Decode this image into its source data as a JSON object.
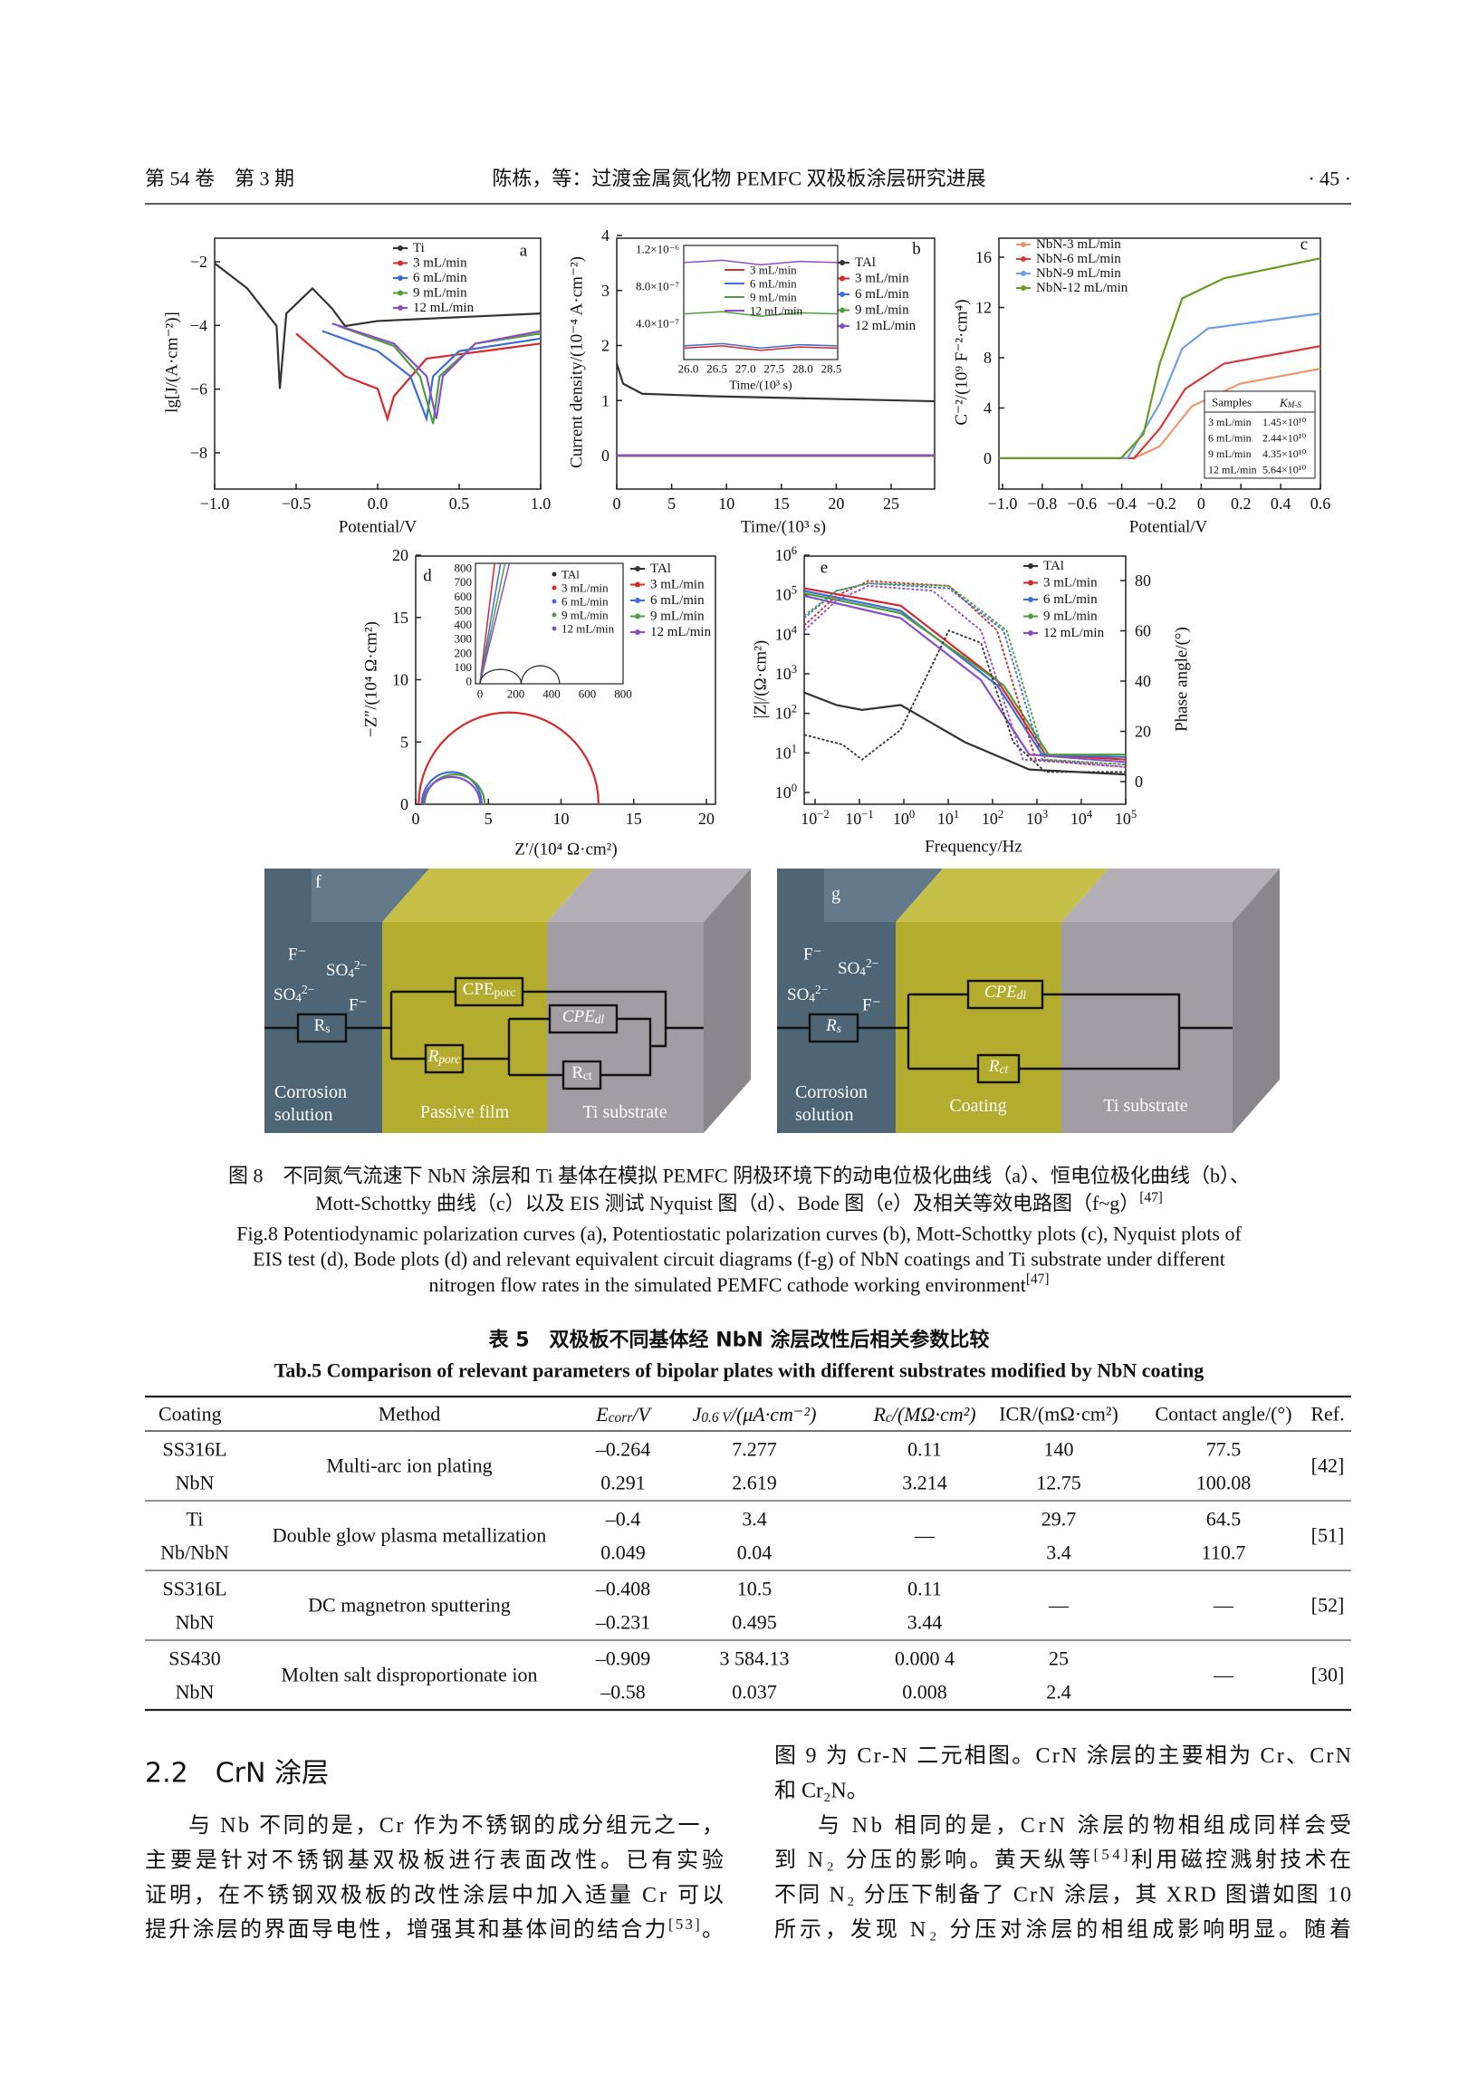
{
  "header": {
    "issue": "第 54 卷　第 3 期",
    "title": "陈栋，等：过渡金属氮化物 PEMFC 双极板涂层研究进展",
    "page": "· 45 ·"
  },
  "figure": {
    "a": {
      "letter": "a",
      "ylabel": "lg[J/(A·cm⁻²)]",
      "xlabel": "Potential/V",
      "yticks": [
        "−8",
        "−6",
        "−4",
        "−2"
      ],
      "xticks": [
        "−1.0",
        "−0.5",
        "0.0",
        "0.5",
        "1.0"
      ],
      "legend": [
        "Ti",
        "3 mL/min",
        "6 mL/min",
        "9 mL/min",
        "12 mL/min"
      ],
      "colors": [
        "#333333",
        "#d42a2a",
        "#3c6fd6",
        "#4e9e3e",
        "#8a4fc4"
      ]
    },
    "b": {
      "letter": "b",
      "ylabel": "Current density/(10⁻⁴ A·cm⁻²)",
      "xlabel": "Time/(10³ s)",
      "yticks": [
        "0",
        "1",
        "2",
        "3",
        "4"
      ],
      "xticks": [
        "0",
        "5",
        "10",
        "15",
        "20",
        "25"
      ],
      "legend": [
        "TAl",
        "3 mL/min",
        "6 mL/min",
        "9 mL/min",
        "12 mL/min"
      ],
      "colors": [
        "#333333",
        "#d42a2a",
        "#3c6fd6",
        "#4e9e3e",
        "#8a4fc4"
      ],
      "inset": {
        "yticks": [
          "4.0×10⁻⁷",
          "8.0×10⁻⁷",
          "1.2×10⁻⁶"
        ],
        "xticks": [
          "26.0",
          "26.5",
          "27.0",
          "27.5",
          "28.0",
          "28.5"
        ],
        "xlabel": "Time/(10³ s)",
        "legend": [
          "3 mL/min",
          "6 mL/min",
          "9 mL/min",
          "12 mL/min"
        ]
      }
    },
    "c": {
      "letter": "c",
      "ylabel": "C⁻²/(10⁹ F⁻²·cm⁴)",
      "xlabel": "Potential/V",
      "yticks": [
        "0",
        "4",
        "8",
        "12",
        "16"
      ],
      "xticks": [
        "−1.0",
        "−0.8",
        "−0.6",
        "−0.4",
        "−0.2",
        "0",
        "0.2",
        "0.4",
        "0.6"
      ],
      "legend": [
        "NbN-3 mL/min",
        "NbN-6 mL/min",
        "NbN-9 mL/min",
        "NbN-12 mL/min"
      ],
      "colors": [
        "#f0956a",
        "#d43a3a",
        "#6fa0e8",
        "#6b9a22"
      ],
      "table": {
        "header": [
          "Samples",
          [
            "K",
            {
              "sub": "M-S"
            }
          ]
        ],
        "rows": [
          [
            "3 mL/min",
            "1.45×10¹⁰"
          ],
          [
            "6 mL/min",
            "2.44×10¹⁰"
          ],
          [
            "9 mL/min",
            "4.35×10¹⁰"
          ],
          [
            "12 mL/min",
            "5.64×10¹⁰"
          ]
        ]
      }
    },
    "d": {
      "letter": "d",
      "ylabel": "−Z″/(10⁴ Ω·cm²)",
      "xlabel": "Z′/(10⁴ Ω·cm²)",
      "yticks": [
        "0",
        "5",
        "10",
        "15",
        "20"
      ],
      "xticks": [
        "0",
        "5",
        "10",
        "15",
        "20"
      ],
      "legend": [
        "TAl",
        "3 mL/min",
        "6 mL/min",
        "9 mL/min",
        "12 mL/min"
      ],
      "colors": [
        "#333333",
        "#d42a2a",
        "#3c6fd6",
        "#4e9e3e",
        "#8a4fc4"
      ],
      "inset": {
        "yticks": [
          "0",
          "100",
          "200",
          "300",
          "400",
          "500",
          "600",
          "700",
          "800"
        ],
        "xticks": [
          "0",
          "200",
          "400",
          "600",
          "800"
        ],
        "legend": [
          "TAl",
          "3 mL/min",
          "6 mL/min",
          "9 mL/min",
          "12 mL/min"
        ]
      }
    },
    "e": {
      "letter": "e",
      "ylabel": "|Z|/(Ω·cm²)",
      "y2label": "Phase angle/(°)",
      "xlabel": "Frequency/Hz",
      "yticks": [
        [
          "10",
          {
            "sup": "0"
          }
        ],
        [
          "10",
          {
            "sup": "1"
          }
        ],
        [
          "10",
          {
            "sup": "2"
          }
        ],
        [
          "10",
          {
            "sup": "3"
          }
        ],
        [
          "10",
          {
            "sup": "4"
          }
        ],
        [
          "10",
          {
            "sup": "5"
          }
        ],
        [
          "10",
          {
            "sup": "6"
          }
        ]
      ],
      "y2ticks": [
        "0",
        "20",
        "40",
        "60",
        "80"
      ],
      "xticks": [
        [
          "10",
          {
            "sup": "−2"
          }
        ],
        [
          "10",
          {
            "sup": "−1"
          }
        ],
        [
          "10",
          {
            "sup": "0"
          }
        ],
        [
          "10",
          {
            "sup": "1"
          }
        ],
        [
          "10",
          {
            "sup": "2"
          }
        ],
        [
          "10",
          {
            "sup": "3"
          }
        ],
        [
          "10",
          {
            "sup": "4"
          }
        ],
        [
          "10",
          {
            "sup": "5"
          }
        ]
      ],
      "legend": [
        "TAl",
        "3 mL/min",
        "6 mL/min",
        "9 mL/min",
        "12 mL/min"
      ],
      "colors": [
        "#333333",
        "#d42a2a",
        "#3c6fd6",
        "#4e9e3e",
        "#8a4fc4"
      ]
    },
    "f": {
      "letter": "f",
      "ions": [
        "F⁻",
        [
          "SO",
          {
            "sub": "4"
          },
          {
            "sup": "2−"
          }
        ],
        [
          "SO",
          {
            "sub": "4"
          },
          {
            "sup": "2−"
          }
        ],
        "F⁻"
      ],
      "elements": {
        "rs": [
          "R",
          {
            "sub": "s"
          }
        ],
        "cpe_porc": [
          "CPE",
          {
            "sub": "porc"
          }
        ],
        "r_porc": [
          "R",
          {
            "sub": "porc"
          }
        ],
        "cpe_dl": [
          "CPE",
          {
            "sub": "dl"
          }
        ],
        "r_ct": [
          "R",
          {
            "sub": "ct"
          }
        ]
      },
      "layers": [
        [
          "Corrosion",
          "solution"
        ],
        "Passive film",
        "Ti substrate"
      ]
    },
    "g": {
      "letter": "g",
      "ions": [
        "F⁻",
        [
          "SO",
          {
            "sub": "4"
          },
          {
            "sup": "2−"
          }
        ],
        [
          "SO",
          {
            "sub": "4"
          },
          {
            "sup": "2−"
          }
        ],
        "F⁻"
      ],
      "elements": {
        "rs": [
          "R",
          {
            "sub": "s"
          }
        ],
        "cpe_dl": [
          "CPE",
          {
            "sub": "dl"
          }
        ],
        "r_ct": [
          "R",
          {
            "sub": "ct"
          }
        ]
      },
      "layers": [
        [
          "Corrosion",
          "solution"
        ],
        "Coating",
        "Ti substrate"
      ]
    }
  },
  "caption": {
    "cn": [
      "图 8　不同氮气流速下 NbN 涂层和 Ti 基体在模拟 PEMFC 阴极环境下的动电位极化曲线（a）、恒电位极化曲线（b）、",
      [
        "Mott-Schottky 曲线（c）以及 EIS 测试 Nyquist 图（d）、Bode 图（e）及相关等效电路图（f~g）",
        {
          "sup": "[47]"
        }
      ]
    ],
    "en": [
      "Fig.8 Potentiodynamic polarization curves (a), Potentiostatic polarization curves (b), Mott-Schottky plots (c), Nyquist plots of",
      "EIS test (d), Bode plots (d) and relevant equivalent circuit diagrams (f-g) of NbN coatings and Ti substrate under different",
      [
        "nitrogen flow rates in the simulated PEMFC cathode working environment",
        {
          "sup": "[47]"
        }
      ]
    ]
  },
  "table": {
    "title_cn": "表 5　双极板不同基体经 NbN 涂层改性后相关参数比较",
    "title_en": "Tab.5 Comparison of relevant parameters of bipolar plates with different substrates modified by NbN coating",
    "columns": [
      "Coating",
      "Method",
      [
        {
          "sub": ""
        },
        "E",
        {
          "sub": "corr"
        },
        "/V"
      ],
      [
        "J",
        {
          "sub": "0.6 V"
        },
        "/(μA·cm⁻²)"
      ],
      [
        "R",
        {
          "sub": "c"
        },
        "/(MΩ·cm²)"
      ],
      "ICR/(mΩ·cm²)",
      "Contact angle/(°)",
      "Ref."
    ],
    "groups": [
      {
        "coating": [
          "SS316L",
          "NbN"
        ],
        "method": "Multi-arc ion plating",
        "ecorr": [
          "–0.264",
          "0.291"
        ],
        "j": [
          "7.277",
          "2.619"
        ],
        "rc": [
          "0.11",
          "3.214"
        ],
        "icr": [
          "140",
          "12.75"
        ],
        "angle": [
          "77.5",
          "100.08"
        ],
        "ref": "[42]"
      },
      {
        "coating": [
          "Ti",
          "Nb/NbN"
        ],
        "method": "Double glow plasma metallization",
        "ecorr": [
          "–0.4",
          "0.049"
        ],
        "j": [
          "3.4",
          "0.04"
        ],
        "rc": "—",
        "icr": [
          "29.7",
          "3.4"
        ],
        "angle": [
          "64.5",
          "110.7"
        ],
        "ref": "[51]"
      },
      {
        "coating": [
          "SS316L",
          "NbN"
        ],
        "method": "DC magnetron sputtering",
        "ecorr": [
          "–0.408",
          "–0.231"
        ],
        "j": [
          "10.5",
          "0.495"
        ],
        "rc": [
          "0.11",
          "3.44"
        ],
        "icr": "—",
        "angle": "—",
        "ref": "[52]"
      },
      {
        "coating": [
          "SS430",
          "NbN"
        ],
        "method": "Molten salt disproportionate ion",
        "ecorr": [
          "–0.909",
          "–0.58"
        ],
        "j": [
          "3 584.13",
          "0.037"
        ],
        "rc": [
          "0.000 4",
          "0.008"
        ],
        "icr": [
          "25",
          "2.4"
        ],
        "angle": "—",
        "ref": "[30]"
      }
    ]
  },
  "section": {
    "heading": "2.2　CrN 涂层",
    "left": [
      [
        "与 Nb 不同的是，Cr 作为不锈钢的成分组元之一，",
        "主要是针对不锈钢基双极板进行表面改性。已有实验",
        "证明，在不锈钢双极板的改性涂层中加入适量 Cr 可以",
        [
          "提升涂层的界面导电性，增强其和基体间的结合力",
          {
            "sup": "[53]"
          },
          "。"
        ]
      ]
    ],
    "right": [
      [
        "图 9 为 Cr-N 二元相图。CrN 涂层的主要相为 Cr、CrN",
        "和 Cr₂N。"
      ],
      [
        "与 Nb 相同的是，CrN 涂层的物相组成同样会受",
        [
          "到 N₂ 分压的影响。黄天纵等",
          {
            "sup": "[54]"
          },
          "利用磁控溅射技术在"
        ],
        "不同 N₂ 分压下制备了 CrN 涂层，其 XRD 图谱如图 10",
        "所示，发现 N₂ 分压对涂层的相组成影响明显。随着"
      ]
    ]
  }
}
